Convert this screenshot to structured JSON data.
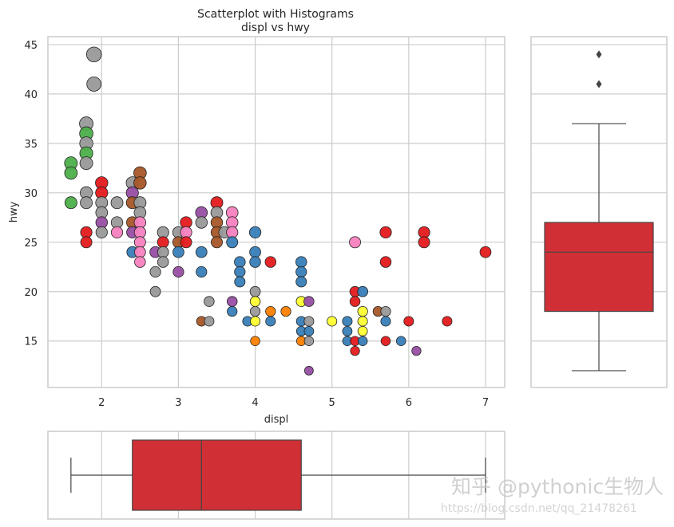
{
  "chart_data": [
    {
      "type": "scatter",
      "title": "Scatterplot with Histograms",
      "subtitle": "displ vs hwy",
      "xlabel": "displ",
      "ylabel": "hwy",
      "xlim": [
        1.3,
        7.25
      ],
      "ylim": [
        10.3,
        45.8
      ],
      "xticks": [
        "2",
        "3",
        "4",
        "5",
        "6",
        "7"
      ],
      "yticks": [
        "15",
        "20",
        "25",
        "30",
        "35",
        "40",
        "45"
      ],
      "grid": true,
      "colors": {
        "red": "#e41a1c",
        "blue": "#377eb8",
        "green": "#4daf4a",
        "purple": "#984ea3",
        "orange": "#ff7f00",
        "yellow": "#ffff33",
        "brown": "#a65628",
        "pink": "#f781bf",
        "gray": "#999999"
      },
      "points": [
        [
          1.9,
          44,
          "gray"
        ],
        [
          1.9,
          41,
          "gray"
        ],
        [
          1.8,
          37,
          "gray"
        ],
        [
          1.8,
          36,
          "green"
        ],
        [
          1.8,
          35,
          "gray"
        ],
        [
          1.8,
          34,
          "green"
        ],
        [
          1.8,
          33,
          "gray"
        ],
        [
          1.6,
          33,
          "green"
        ],
        [
          1.6,
          32,
          "green"
        ],
        [
          1.6,
          29,
          "green"
        ],
        [
          1.8,
          30,
          "gray"
        ],
        [
          1.8,
          29,
          "gray"
        ],
        [
          1.8,
          26,
          "red"
        ],
        [
          1.8,
          25,
          "red"
        ],
        [
          2.0,
          31,
          "red"
        ],
        [
          2.0,
          30,
          "red"
        ],
        [
          2.0,
          29,
          "gray"
        ],
        [
          2.0,
          28,
          "gray"
        ],
        [
          2.0,
          27,
          "purple"
        ],
        [
          2.0,
          26,
          "gray"
        ],
        [
          2.2,
          29,
          "gray"
        ],
        [
          2.2,
          27,
          "gray"
        ],
        [
          2.2,
          26,
          "pink"
        ],
        [
          2.4,
          31,
          "gray"
        ],
        [
          2.4,
          30,
          "purple"
        ],
        [
          2.4,
          29,
          "brown"
        ],
        [
          2.4,
          27,
          "brown"
        ],
        [
          2.4,
          26,
          "purple"
        ],
        [
          2.4,
          24,
          "blue"
        ],
        [
          2.5,
          32,
          "brown"
        ],
        [
          2.5,
          31,
          "brown"
        ],
        [
          2.5,
          29,
          "gray"
        ],
        [
          2.5,
          28,
          "gray"
        ],
        [
          2.5,
          27,
          "pink"
        ],
        [
          2.5,
          26,
          "pink"
        ],
        [
          2.5,
          25,
          "pink"
        ],
        [
          2.5,
          24,
          "pink"
        ],
        [
          2.5,
          23,
          "pink"
        ],
        [
          2.7,
          24,
          "purple"
        ],
        [
          2.7,
          22,
          "gray"
        ],
        [
          2.7,
          20,
          "gray"
        ],
        [
          2.8,
          26,
          "gray"
        ],
        [
          2.8,
          25,
          "red"
        ],
        [
          2.8,
          24,
          "gray"
        ],
        [
          2.8,
          23,
          "gray"
        ],
        [
          3.0,
          26,
          "gray"
        ],
        [
          3.0,
          25,
          "brown"
        ],
        [
          3.0,
          24,
          "blue"
        ],
        [
          3.0,
          22,
          "purple"
        ],
        [
          3.1,
          27,
          "red"
        ],
        [
          3.1,
          26,
          "pink"
        ],
        [
          3.1,
          25,
          "red"
        ],
        [
          3.3,
          28,
          "purple"
        ],
        [
          3.3,
          27,
          "gray"
        ],
        [
          3.3,
          24,
          "blue"
        ],
        [
          3.3,
          22,
          "blue"
        ],
        [
          3.3,
          17,
          "brown"
        ],
        [
          3.4,
          17,
          "gray"
        ],
        [
          3.4,
          19,
          "gray"
        ],
        [
          3.5,
          29,
          "red"
        ],
        [
          3.5,
          28,
          "gray"
        ],
        [
          3.5,
          27,
          "brown"
        ],
        [
          3.5,
          26,
          "brown"
        ],
        [
          3.5,
          25,
          "brown"
        ],
        [
          3.6,
          26,
          "gray"
        ],
        [
          3.7,
          28,
          "pink"
        ],
        [
          3.7,
          27,
          "pink"
        ],
        [
          3.7,
          26,
          "pink"
        ],
        [
          3.7,
          25,
          "blue"
        ],
        [
          3.7,
          19,
          "purple"
        ],
        [
          3.7,
          18,
          "blue"
        ],
        [
          3.8,
          23,
          "blue"
        ],
        [
          3.8,
          22,
          "blue"
        ],
        [
          3.8,
          21,
          "blue"
        ],
        [
          3.9,
          17,
          "blue"
        ],
        [
          4.0,
          26,
          "blue"
        ],
        [
          4.0,
          24,
          "blue"
        ],
        [
          4.0,
          23,
          "blue"
        ],
        [
          4.0,
          20,
          "gray"
        ],
        [
          4.0,
          19,
          "yellow"
        ],
        [
          4.0,
          18,
          "gray"
        ],
        [
          4.0,
          17,
          "yellow"
        ],
        [
          4.0,
          15,
          "orange"
        ],
        [
          4.2,
          23,
          "red"
        ],
        [
          4.2,
          17,
          "blue"
        ],
        [
          4.2,
          18,
          "orange"
        ],
        [
          4.4,
          18,
          "orange"
        ],
        [
          4.6,
          23,
          "blue"
        ],
        [
          4.6,
          22,
          "blue"
        ],
        [
          4.6,
          21,
          "blue"
        ],
        [
          4.6,
          19,
          "yellow"
        ],
        [
          4.6,
          17,
          "blue"
        ],
        [
          4.6,
          16,
          "blue"
        ],
        [
          4.6,
          15,
          "orange"
        ],
        [
          4.7,
          19,
          "purple"
        ],
        [
          4.7,
          17,
          "gray"
        ],
        [
          4.7,
          16,
          "blue"
        ],
        [
          4.7,
          15,
          "gray"
        ],
        [
          4.7,
          12,
          "purple"
        ],
        [
          5.0,
          17,
          "yellow"
        ],
        [
          5.2,
          17,
          "blue"
        ],
        [
          5.2,
          16,
          "blue"
        ],
        [
          5.2,
          15,
          "blue"
        ],
        [
          5.3,
          25,
          "pink"
        ],
        [
          5.3,
          20,
          "red"
        ],
        [
          5.3,
          19,
          "red"
        ],
        [
          5.3,
          15,
          "red"
        ],
        [
          5.3,
          14,
          "red"
        ],
        [
          5.4,
          20,
          "blue"
        ],
        [
          5.4,
          18,
          "yellow"
        ],
        [
          5.4,
          17,
          "yellow"
        ],
        [
          5.4,
          16,
          "yellow"
        ],
        [
          5.4,
          15,
          "blue"
        ],
        [
          5.6,
          18,
          "brown"
        ],
        [
          5.7,
          18,
          "gray"
        ],
        [
          5.7,
          17,
          "blue"
        ],
        [
          5.7,
          26,
          "red"
        ],
        [
          5.7,
          23,
          "red"
        ],
        [
          5.7,
          15,
          "red"
        ],
        [
          5.9,
          15,
          "blue"
        ],
        [
          6.0,
          17,
          "red"
        ],
        [
          6.1,
          14,
          "purple"
        ],
        [
          6.2,
          26,
          "red"
        ],
        [
          6.2,
          25,
          "red"
        ],
        [
          6.5,
          17,
          "red"
        ],
        [
          7.0,
          24,
          "red"
        ]
      ]
    },
    {
      "type": "box",
      "variable": "hwy",
      "orientation": "vertical",
      "whisker_low": 12,
      "q1": 18,
      "median": 24,
      "q3": 27,
      "whisker_high": 37,
      "outliers": [
        41,
        44
      ],
      "color": "#d03035"
    },
    {
      "type": "box",
      "variable": "displ",
      "orientation": "horizontal",
      "whisker_low": 1.6,
      "q1": 2.4,
      "median": 3.3,
      "q3": 4.6,
      "whisker_high": 7.0,
      "outliers": [],
      "color": "#d03035"
    }
  ],
  "watermark": {
    "line1": "知乎 @pythonic生物人",
    "line2": "https://blog.csdn.net/qq_21478261"
  }
}
